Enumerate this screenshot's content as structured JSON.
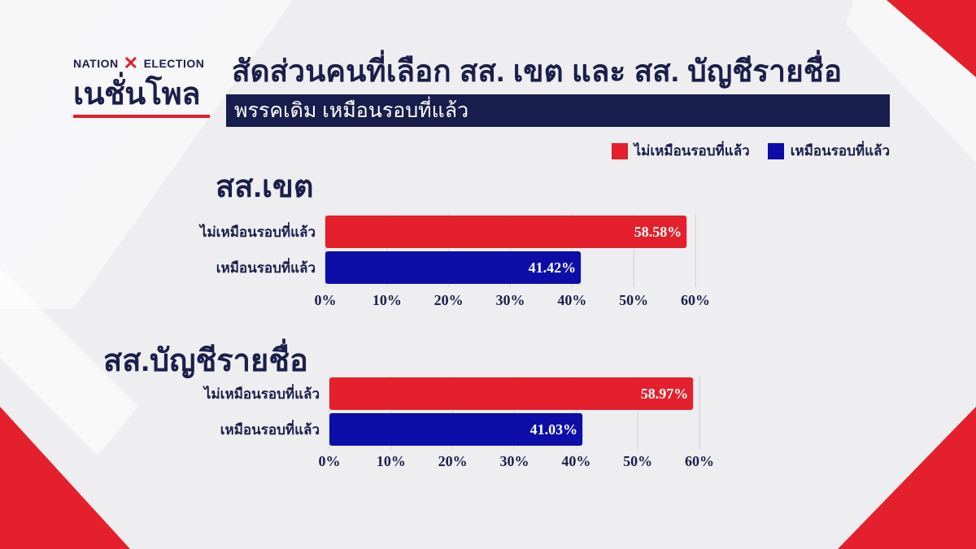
{
  "branding": {
    "logo_top_left": "NATION",
    "logo_top_right": "ELECTION",
    "logo_bottom": "เนชั่นโพล"
  },
  "header": {
    "title": "สัดส่วนคนที่เลือก สส. เขต และ สส. บัญชีรายชื่อ",
    "subtitle": "พรรคเดิม เหมือนรอบที่แล้ว"
  },
  "legend": [
    {
      "label": "ไม่เหมือนรอบที่แล้ว",
      "color": "#e3202b"
    },
    {
      "label": "เหมือนรอบที่แล้ว",
      "color": "#0d0ea8"
    }
  ],
  "colors": {
    "accent_red": "#e3202b",
    "accent_blue": "#0d0ea8",
    "navy": "#171d4c",
    "background": "#eeeef0"
  },
  "chart_data": [
    {
      "type": "bar",
      "orientation": "horizontal",
      "title": "สส.เขต",
      "categories": [
        "ไม่เหมือนรอบที่แล้ว",
        "เหมือนรอบที่แล้ว"
      ],
      "values": [
        58.58,
        41.42
      ],
      "value_labels": [
        "58.58%",
        "41.42%"
      ],
      "colors": [
        "#e3202b",
        "#0d0ea8"
      ],
      "xlim": [
        0,
        60
      ],
      "xticks": [
        "0%",
        "10%",
        "20%",
        "30%",
        "40%",
        "50%",
        "60%"
      ],
      "grid": true
    },
    {
      "type": "bar",
      "orientation": "horizontal",
      "title": "สส.บัญชีรายชื่อ",
      "categories": [
        "ไม่เหมือนรอบที่แล้ว",
        "เหมือนรอบที่แล้ว"
      ],
      "values": [
        58.97,
        41.03
      ],
      "value_labels": [
        "58.97%",
        "41.03%"
      ],
      "colors": [
        "#e3202b",
        "#0d0ea8"
      ],
      "xlim": [
        0,
        60
      ],
      "xticks": [
        "0%",
        "10%",
        "20%",
        "30%",
        "40%",
        "50%",
        "60%"
      ],
      "grid": true
    }
  ]
}
